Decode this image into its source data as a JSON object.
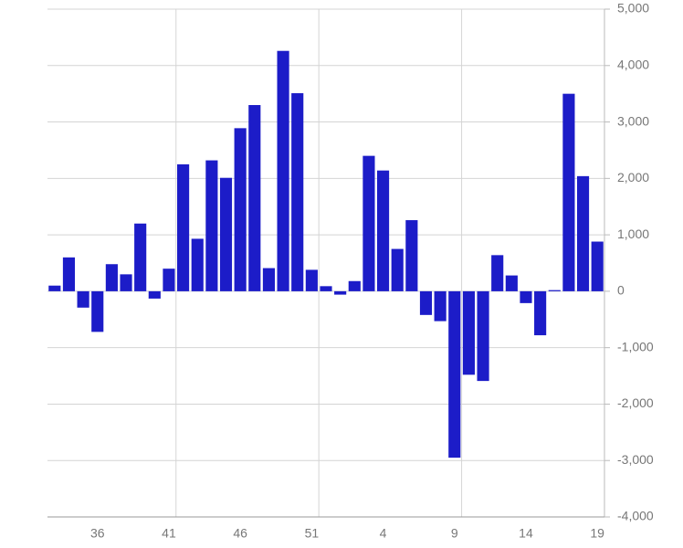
{
  "chart_data": {
    "type": "bar",
    "categories": [
      null,
      null,
      null,
      "36",
      null,
      null,
      null,
      null,
      "41",
      null,
      null,
      null,
      null,
      "46",
      null,
      null,
      null,
      null,
      "51",
      null,
      null,
      null,
      null,
      "4",
      null,
      null,
      null,
      null,
      "9",
      null,
      null,
      null,
      null,
      "14",
      null,
      null,
      null,
      null,
      "19"
    ],
    "values": [
      100,
      600,
      -290,
      -720,
      480,
      300,
      1200,
      -130,
      400,
      2250,
      930,
      2320,
      2010,
      2890,
      3300,
      410,
      4260,
      3510,
      380,
      90,
      -60,
      180,
      2400,
      2140,
      750,
      1260,
      -420,
      -530,
      -2950,
      -1480,
      -1590,
      640,
      280,
      -210,
      -780,
      20,
      3500,
      2040,
      880
    ],
    "color": "#1c1cc8",
    "ylim": [
      -4000,
      5000
    ],
    "yticks": [
      {
        "value": -4000,
        "label": "-4,000"
      },
      {
        "value": -3000,
        "label": "-3,000"
      },
      {
        "value": -2000,
        "label": "-2,000"
      },
      {
        "value": -1000,
        "label": "-1,000"
      },
      0,
      {
        "value": 1000,
        "label": "1,000"
      },
      {
        "value": 2000,
        "label": "2,000"
      },
      {
        "value": 3000,
        "label": "3,000"
      },
      {
        "value": 4000,
        "label": "4,000"
      },
      {
        "value": 5000,
        "label": "5,000"
      }
    ],
    "grid": true
  }
}
